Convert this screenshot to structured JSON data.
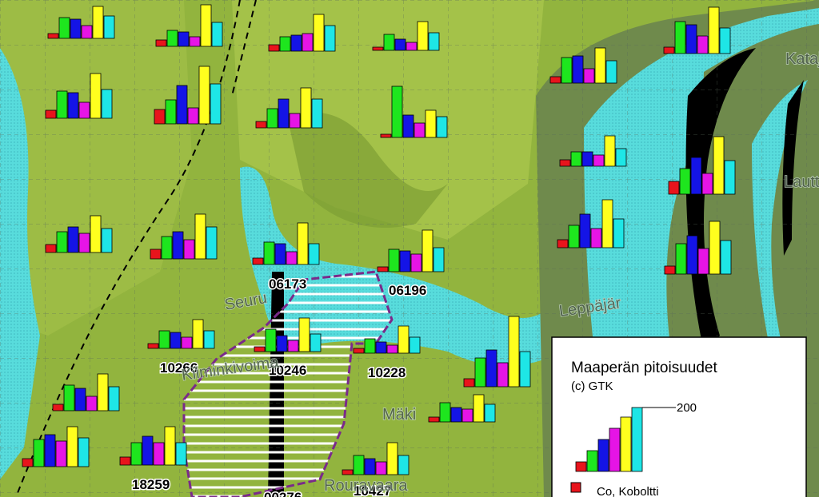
{
  "map": {
    "legend": {
      "title": "Maaperän pitoisuudet",
      "credit": "(c) GTK",
      "scale_label": 200,
      "scale_values": [
        30,
        65,
        100,
        135,
        170,
        200
      ],
      "items": [
        {
          "label": "Co, Koboltti",
          "color": "#e8141c"
        }
      ]
    },
    "bar_colors": [
      "#e8141c",
      "#1ee61e",
      "#1414e6",
      "#e614e6",
      "#ffff1e",
      "#1ee6e6"
    ],
    "sites": [
      "06173",
      "06196",
      "10266",
      "10246",
      "10228",
      "18259",
      "10427",
      "00276"
    ],
    "place_names": [
      "Mäki",
      "Rouravaara",
      "Seuru",
      "Leppäjär",
      "Kataja",
      "Lauttas",
      "Kiiminkivoima"
    ],
    "glyphs": [
      [
        15,
        65,
        60,
        40,
        100,
        70
      ],
      [
        20,
        50,
        45,
        30,
        130,
        75
      ],
      [
        20,
        45,
        50,
        55,
        115,
        80
      ],
      [
        10,
        50,
        35,
        25,
        90,
        55
      ],
      [
        25,
        85,
        80,
        50,
        140,
        90
      ],
      [
        45,
        75,
        120,
        50,
        180,
        125
      ],
      [
        20,
        60,
        90,
        45,
        125,
        90
      ],
      [
        10,
        160,
        70,
        45,
        85,
        65
      ],
      [
        20,
        80,
        85,
        45,
        110,
        70
      ],
      [
        20,
        100,
        90,
        55,
        145,
        80
      ],
      [
        25,
        65,
        80,
        60,
        115,
        75
      ],
      [
        30,
        70,
        85,
        60,
        140,
        100
      ],
      [
        20,
        70,
        65,
        40,
        130,
        65
      ],
      [
        15,
        70,
        65,
        55,
        130,
        75
      ],
      [
        20,
        45,
        45,
        35,
        95,
        55
      ],
      [
        25,
        70,
        105,
        60,
        150,
        90
      ],
      [
        40,
        80,
        115,
        65,
        180,
        105
      ],
      [
        25,
        95,
        120,
        80,
        165,
        105
      ],
      [
        15,
        55,
        50,
        35,
        90,
        55
      ],
      [
        15,
        70,
        50,
        35,
        105,
        55
      ],
      [
        15,
        45,
        35,
        25,
        85,
        50
      ],
      [
        25,
        90,
        115,
        75,
        220,
        110
      ],
      [
        20,
        80,
        70,
        45,
        115,
        75
      ],
      [
        15,
        60,
        45,
        40,
        85,
        55
      ],
      [
        25,
        85,
        100,
        80,
        125,
        90
      ],
      [
        25,
        70,
        90,
        70,
        120,
        70
      ],
      [
        15,
        60,
        50,
        40,
        100,
        60
      ]
    ]
  }
}
